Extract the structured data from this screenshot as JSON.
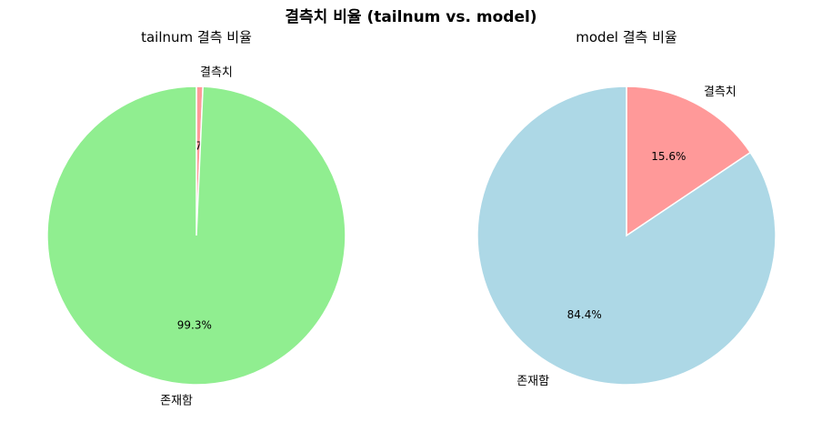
{
  "figure": {
    "suptitle": "결측치 비율 (tailnum vs. model)"
  },
  "chart_data": [
    {
      "type": "pie",
      "title": "tailnum 결측 비율",
      "labels": [
        "결측치",
        "존재함"
      ],
      "values": [
        0.7,
        99.3
      ],
      "value_labels": [
        "0.7%",
        "99.3%"
      ],
      "colors": [
        "#ff9999",
        "#90ee90"
      ],
      "start_angle": 90,
      "direction": "clockwise"
    },
    {
      "type": "pie",
      "title": "model 결측 비율",
      "labels": [
        "결측치",
        "존재함"
      ],
      "values": [
        15.6,
        84.4
      ],
      "value_labels": [
        "15.6%",
        "84.4%"
      ],
      "colors": [
        "#ff9999",
        "#add8e6"
      ],
      "start_angle": 90,
      "direction": "clockwise"
    }
  ]
}
